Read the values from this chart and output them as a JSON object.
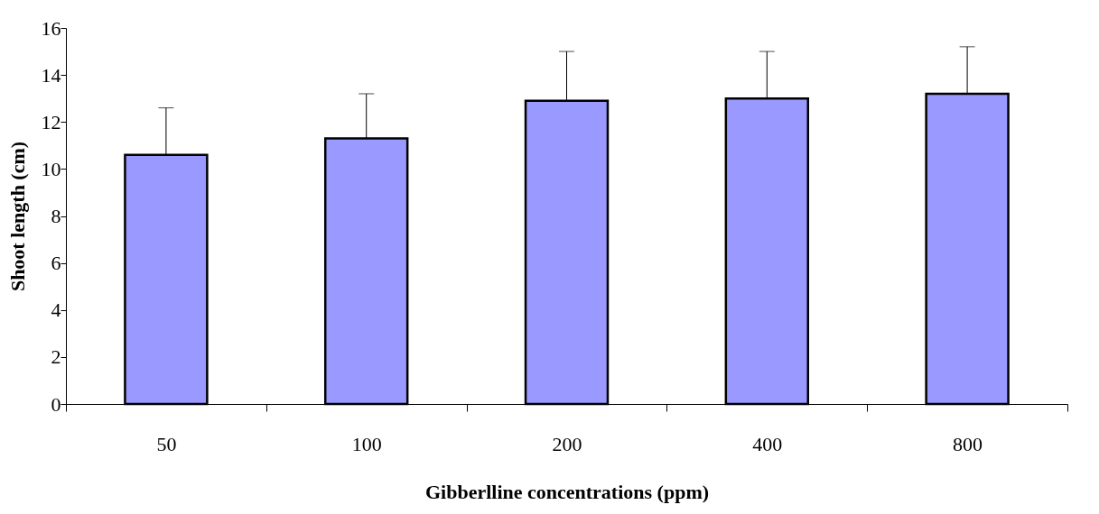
{
  "chart_data": {
    "type": "bar",
    "xlabel": "Gibberlline concentrations (ppm)",
    "ylabel": "Shoot length  (cm)",
    "categories": [
      "50",
      "100",
      "200",
      "400",
      "800"
    ],
    "values": [
      10.6,
      11.3,
      12.9,
      13.0,
      13.2
    ],
    "errors": [
      [
        10.6,
        12.6
      ],
      [
        11.3,
        13.2
      ],
      [
        12.9,
        15.0
      ],
      [
        13.0,
        15.0
      ],
      [
        13.2,
        15.2
      ]
    ],
    "color": "#9999ff",
    "ylim": [
      0,
      16
    ],
    "yticks": [
      0,
      2,
      4,
      6,
      8,
      10,
      12,
      14,
      16
    ],
    "grid": false
  }
}
